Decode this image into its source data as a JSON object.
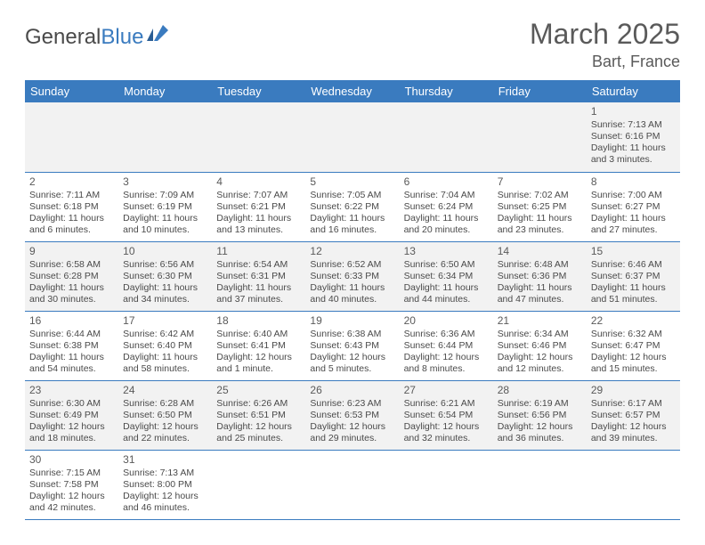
{
  "brand": {
    "part1": "General",
    "part2": "Blue"
  },
  "title": "March 2025",
  "location": "Bart, France",
  "colors": {
    "header_bg": "#3a7bbf",
    "header_text": "#ffffff",
    "row_alt_bg": "#f2f2f2",
    "row_bg": "#ffffff",
    "border": "#3a7bbf",
    "text": "#4a4a4a",
    "title_text": "#5a5a5a"
  },
  "daysOfWeek": [
    "Sunday",
    "Monday",
    "Tuesday",
    "Wednesday",
    "Thursday",
    "Friday",
    "Saturday"
  ],
  "weeks": [
    [
      null,
      null,
      null,
      null,
      null,
      null,
      {
        "n": "1",
        "sunrise": "7:13 AM",
        "sunset": "6:16 PM",
        "daylight": "11 hours and 3 minutes."
      }
    ],
    [
      {
        "n": "2",
        "sunrise": "7:11 AM",
        "sunset": "6:18 PM",
        "daylight": "11 hours and 6 minutes."
      },
      {
        "n": "3",
        "sunrise": "7:09 AM",
        "sunset": "6:19 PM",
        "daylight": "11 hours and 10 minutes."
      },
      {
        "n": "4",
        "sunrise": "7:07 AM",
        "sunset": "6:21 PM",
        "daylight": "11 hours and 13 minutes."
      },
      {
        "n": "5",
        "sunrise": "7:05 AM",
        "sunset": "6:22 PM",
        "daylight": "11 hours and 16 minutes."
      },
      {
        "n": "6",
        "sunrise": "7:04 AM",
        "sunset": "6:24 PM",
        "daylight": "11 hours and 20 minutes."
      },
      {
        "n": "7",
        "sunrise": "7:02 AM",
        "sunset": "6:25 PM",
        "daylight": "11 hours and 23 minutes."
      },
      {
        "n": "8",
        "sunrise": "7:00 AM",
        "sunset": "6:27 PM",
        "daylight": "11 hours and 27 minutes."
      }
    ],
    [
      {
        "n": "9",
        "sunrise": "6:58 AM",
        "sunset": "6:28 PM",
        "daylight": "11 hours and 30 minutes."
      },
      {
        "n": "10",
        "sunrise": "6:56 AM",
        "sunset": "6:30 PM",
        "daylight": "11 hours and 34 minutes."
      },
      {
        "n": "11",
        "sunrise": "6:54 AM",
        "sunset": "6:31 PM",
        "daylight": "11 hours and 37 minutes."
      },
      {
        "n": "12",
        "sunrise": "6:52 AM",
        "sunset": "6:33 PM",
        "daylight": "11 hours and 40 minutes."
      },
      {
        "n": "13",
        "sunrise": "6:50 AM",
        "sunset": "6:34 PM",
        "daylight": "11 hours and 44 minutes."
      },
      {
        "n": "14",
        "sunrise": "6:48 AM",
        "sunset": "6:36 PM",
        "daylight": "11 hours and 47 minutes."
      },
      {
        "n": "15",
        "sunrise": "6:46 AM",
        "sunset": "6:37 PM",
        "daylight": "11 hours and 51 minutes."
      }
    ],
    [
      {
        "n": "16",
        "sunrise": "6:44 AM",
        "sunset": "6:38 PM",
        "daylight": "11 hours and 54 minutes."
      },
      {
        "n": "17",
        "sunrise": "6:42 AM",
        "sunset": "6:40 PM",
        "daylight": "11 hours and 58 minutes."
      },
      {
        "n": "18",
        "sunrise": "6:40 AM",
        "sunset": "6:41 PM",
        "daylight": "12 hours and 1 minute."
      },
      {
        "n": "19",
        "sunrise": "6:38 AM",
        "sunset": "6:43 PM",
        "daylight": "12 hours and 5 minutes."
      },
      {
        "n": "20",
        "sunrise": "6:36 AM",
        "sunset": "6:44 PM",
        "daylight": "12 hours and 8 minutes."
      },
      {
        "n": "21",
        "sunrise": "6:34 AM",
        "sunset": "6:46 PM",
        "daylight": "12 hours and 12 minutes."
      },
      {
        "n": "22",
        "sunrise": "6:32 AM",
        "sunset": "6:47 PM",
        "daylight": "12 hours and 15 minutes."
      }
    ],
    [
      {
        "n": "23",
        "sunrise": "6:30 AM",
        "sunset": "6:49 PM",
        "daylight": "12 hours and 18 minutes."
      },
      {
        "n": "24",
        "sunrise": "6:28 AM",
        "sunset": "6:50 PM",
        "daylight": "12 hours and 22 minutes."
      },
      {
        "n": "25",
        "sunrise": "6:26 AM",
        "sunset": "6:51 PM",
        "daylight": "12 hours and 25 minutes."
      },
      {
        "n": "26",
        "sunrise": "6:23 AM",
        "sunset": "6:53 PM",
        "daylight": "12 hours and 29 minutes."
      },
      {
        "n": "27",
        "sunrise": "6:21 AM",
        "sunset": "6:54 PM",
        "daylight": "12 hours and 32 minutes."
      },
      {
        "n": "28",
        "sunrise": "6:19 AM",
        "sunset": "6:56 PM",
        "daylight": "12 hours and 36 minutes."
      },
      {
        "n": "29",
        "sunrise": "6:17 AM",
        "sunset": "6:57 PM",
        "daylight": "12 hours and 39 minutes."
      }
    ],
    [
      {
        "n": "30",
        "sunrise": "7:15 AM",
        "sunset": "7:58 PM",
        "daylight": "12 hours and 42 minutes."
      },
      {
        "n": "31",
        "sunrise": "7:13 AM",
        "sunset": "8:00 PM",
        "daylight": "12 hours and 46 minutes."
      },
      null,
      null,
      null,
      null,
      null
    ]
  ],
  "labels": {
    "sunrise": "Sunrise:",
    "sunset": "Sunset:",
    "daylight": "Daylight:"
  }
}
